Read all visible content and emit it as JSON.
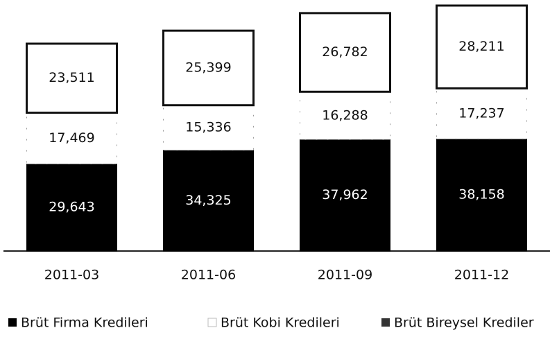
{
  "chart_data": {
    "type": "stacked-bar",
    "categories": [
      "2011-03",
      "2011-06",
      "2011-09",
      "2011-12"
    ],
    "series": [
      {
        "name": "Brüt Firma Kredileri",
        "color": "#000000",
        "values": [
          29643,
          34325,
          37962,
          38158
        ],
        "value_labels": [
          "29,643",
          "34,325",
          "37,962",
          "38,158"
        ]
      },
      {
        "name": "Brüt Kobi Kredileri",
        "color": "#ffffff",
        "values": [
          17469,
          15336,
          16288,
          17237
        ],
        "value_labels": [
          "17,469",
          "15,336",
          "16,288",
          "17,237"
        ]
      },
      {
        "name": "Brüt Bireysel Krediler",
        "color": "#ffffff",
        "values": [
          23511,
          25399,
          26782,
          28211
        ],
        "value_labels": [
          "23,511",
          "25,399",
          "26,782",
          "28,211"
        ]
      }
    ]
  }
}
